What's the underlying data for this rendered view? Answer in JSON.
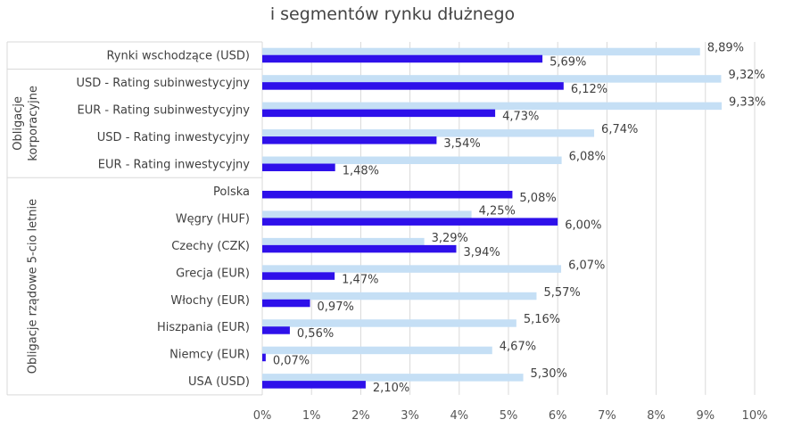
{
  "chart_data": {
    "type": "bar",
    "orientation": "horizontal",
    "title": "i segmentów rynku dłużnego",
    "xlim": [
      0,
      10
    ],
    "x_ticks": [
      "0%",
      "1%",
      "2%",
      "3%",
      "4%",
      "5%",
      "6%",
      "7%",
      "8%",
      "9%",
      "10%"
    ],
    "grid": true,
    "colors": {
      "light": "#c5dff5",
      "dark": "#2e10ea"
    },
    "categories": [
      "Rynki wschodzące (USD)",
      "USD - Rating subinwestycyjny",
      "EUR - Rating subinwestycyjny",
      "USD - Rating inwestycyjny",
      "EUR - Rating inwestycyjny",
      "Polska",
      "Węgry (HUF)",
      "Czechy (CZK)",
      "Grecja (EUR)",
      "Włochy (EUR)",
      "Hiszpania (EUR)",
      "Niemcy (EUR)",
      "USA (USD)"
    ],
    "groups": [
      {
        "label": "",
        "start": 0,
        "end": 0
      },
      {
        "label": "Obligacje korporacyjne",
        "lines": [
          "Obligacje",
          "korporacyjne"
        ],
        "start": 1,
        "end": 4
      },
      {
        "label": "Obligacje rządowe 5-cio letnie",
        "lines": [
          "Obligacje rządowe 5-cio letnie"
        ],
        "start": 5,
        "end": 12
      }
    ],
    "series": [
      {
        "values": [
          8.89,
          9.32,
          9.33,
          6.74,
          6.08,
          null,
          4.25,
          3.29,
          6.07,
          5.57,
          5.16,
          4.67,
          5.3
        ],
        "labels": [
          "8,89%",
          "9,32%",
          "9,33%",
          "6,74%",
          "6,08%",
          "",
          "4,25%",
          "3,29%",
          "6,07%",
          "5,57%",
          "5,16%",
          "4,67%",
          "5,30%"
        ]
      },
      {
        "values": [
          5.69,
          6.12,
          4.73,
          3.54,
          1.48,
          5.08,
          6.0,
          3.94,
          1.47,
          0.97,
          0.56,
          0.07,
          2.1
        ],
        "labels": [
          "5,69%",
          "6,12%",
          "4,73%",
          "3,54%",
          "1,48%",
          "5,08%",
          "6,00%",
          "3,94%",
          "1,47%",
          "0,97%",
          "0,56%",
          "0,07%",
          "2,10%"
        ]
      }
    ]
  }
}
